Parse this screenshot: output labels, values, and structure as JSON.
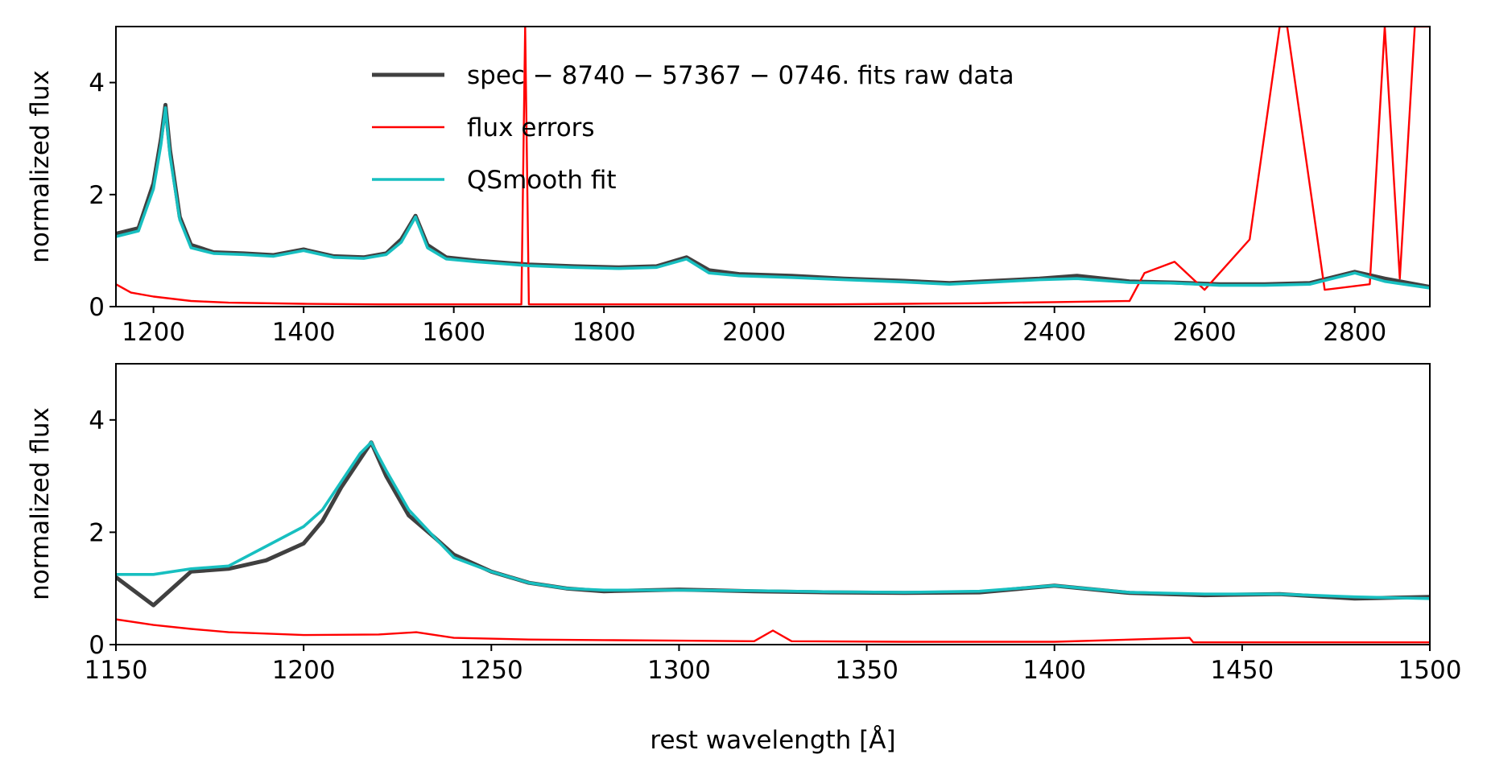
{
  "chart_data": [
    {
      "type": "line",
      "panel": "top",
      "xlabel": "",
      "ylabel": "normalized flux",
      "xlim": [
        1150,
        2900
      ],
      "ylim": [
        0,
        5
      ],
      "xticks": [
        1200,
        1400,
        1600,
        1800,
        2000,
        2200,
        2400,
        2600,
        2800
      ],
      "yticks": [
        0,
        2,
        4
      ],
      "legend": {
        "placement": "top-center",
        "entries": [
          {
            "label": "spec − 8740 − 57367 − 0746. fits raw data",
            "color": "#404040"
          },
          {
            "label": " flux errors",
            "color": "#ff0000"
          },
          {
            "label": "QSmooth fit",
            "color": "#17bfc0"
          }
        ]
      },
      "series": [
        {
          "name": "spec − 8740 − 57367 − 0746. fits raw data",
          "color": "#404040",
          "x": [
            1150,
            1180,
            1200,
            1210,
            1216,
            1222,
            1235,
            1250,
            1280,
            1320,
            1360,
            1400,
            1440,
            1480,
            1510,
            1530,
            1549,
            1565,
            1590,
            1630,
            1700,
            1760,
            1820,
            1870,
            1910,
            1940,
            1980,
            2050,
            2120,
            2200,
            2260,
            2320,
            2380,
            2430,
            2500,
            2560,
            2620,
            2680,
            2740,
            2800,
            2840,
            2900
          ],
          "y": [
            1.3,
            1.4,
            2.2,
            3.0,
            3.6,
            2.8,
            1.6,
            1.1,
            0.97,
            0.95,
            0.92,
            1.02,
            0.9,
            0.88,
            0.95,
            1.2,
            1.62,
            1.1,
            0.88,
            0.82,
            0.75,
            0.72,
            0.7,
            0.72,
            0.88,
            0.65,
            0.58,
            0.55,
            0.5,
            0.46,
            0.42,
            0.46,
            0.5,
            0.55,
            0.45,
            0.43,
            0.4,
            0.4,
            0.42,
            0.62,
            0.5,
            0.35
          ]
        },
        {
          "name": "flux errors",
          "color": "#ff0000",
          "x": [
            1150,
            1170,
            1200,
            1250,
            1300,
            1400,
            1500,
            1600,
            1690,
            1695,
            1700,
            1800,
            1900,
            2000,
            2100,
            2200,
            2300,
            2400,
            2500,
            2520,
            2560,
            2600,
            2660,
            2700,
            2710,
            2760,
            2820,
            2840,
            2860,
            2880,
            2900
          ],
          "y": [
            0.4,
            0.25,
            0.18,
            0.1,
            0.07,
            0.05,
            0.04,
            0.04,
            0.04,
            5.0,
            0.04,
            0.04,
            0.04,
            0.04,
            0.04,
            0.05,
            0.06,
            0.08,
            0.1,
            0.6,
            0.8,
            0.3,
            1.2,
            5.0,
            5.0,
            0.3,
            0.4,
            5.0,
            0.5,
            5.0,
            5.0
          ]
        },
        {
          "name": "QSmooth fit",
          "color": "#17bfc0",
          "x": [
            1150,
            1180,
            1200,
            1210,
            1216,
            1222,
            1235,
            1250,
            1280,
            1320,
            1360,
            1400,
            1440,
            1480,
            1510,
            1530,
            1549,
            1565,
            1590,
            1630,
            1700,
            1760,
            1820,
            1870,
            1910,
            1940,
            1980,
            2050,
            2120,
            2200,
            2260,
            2320,
            2380,
            2430,
            2500,
            2560,
            2620,
            2680,
            2740,
            2800,
            2840,
            2900
          ],
          "y": [
            1.25,
            1.35,
            2.1,
            2.9,
            3.55,
            2.7,
            1.55,
            1.05,
            0.95,
            0.93,
            0.9,
            1.0,
            0.88,
            0.86,
            0.93,
            1.15,
            1.6,
            1.05,
            0.85,
            0.8,
            0.73,
            0.7,
            0.68,
            0.7,
            0.85,
            0.6,
            0.55,
            0.52,
            0.48,
            0.44,
            0.4,
            0.44,
            0.48,
            0.5,
            0.43,
            0.42,
            0.38,
            0.38,
            0.4,
            0.6,
            0.45,
            0.33
          ]
        }
      ]
    },
    {
      "type": "line",
      "panel": "bottom",
      "xlabel": "rest wavelength [Å]",
      "ylabel": "normalized flux",
      "xlim": [
        1150,
        1500
      ],
      "ylim": [
        0,
        5
      ],
      "xticks": [
        1150,
        1200,
        1250,
        1300,
        1350,
        1400,
        1450,
        1500
      ],
      "yticks": [
        0,
        2,
        4
      ],
      "series": [
        {
          "name": "spec − 8740 − 57367 − 0746. fits raw data",
          "color": "#404040",
          "x": [
            1150,
            1160,
            1170,
            1180,
            1190,
            1200,
            1205,
            1210,
            1215,
            1218,
            1222,
            1228,
            1235,
            1240,
            1250,
            1260,
            1270,
            1280,
            1300,
            1320,
            1340,
            1360,
            1380,
            1400,
            1420,
            1440,
            1460,
            1480,
            1500
          ],
          "y": [
            1.2,
            0.7,
            1.3,
            1.35,
            1.5,
            1.8,
            2.2,
            2.8,
            3.3,
            3.6,
            3.0,
            2.3,
            1.9,
            1.6,
            1.3,
            1.1,
            1.0,
            0.95,
            0.98,
            0.95,
            0.93,
            0.92,
            0.93,
            1.05,
            0.92,
            0.88,
            0.9,
            0.82,
            0.85
          ]
        },
        {
          "name": "flux errors",
          "color": "#ff0000",
          "x": [
            1150,
            1160,
            1170,
            1180,
            1200,
            1220,
            1230,
            1240,
            1260,
            1280,
            1300,
            1320,
            1325,
            1330,
            1360,
            1400,
            1436,
            1437,
            1450,
            1500
          ],
          "y": [
            0.45,
            0.35,
            0.28,
            0.22,
            0.17,
            0.18,
            0.22,
            0.12,
            0.09,
            0.08,
            0.07,
            0.06,
            0.25,
            0.06,
            0.05,
            0.05,
            0.12,
            0.04,
            0.04,
            0.04
          ]
        },
        {
          "name": "QSmooth fit",
          "color": "#17bfc0",
          "x": [
            1150,
            1160,
            1170,
            1180,
            1190,
            1200,
            1205,
            1210,
            1215,
            1218,
            1222,
            1228,
            1235,
            1240,
            1250,
            1260,
            1270,
            1280,
            1300,
            1320,
            1340,
            1360,
            1380,
            1400,
            1420,
            1440,
            1460,
            1480,
            1500
          ],
          "y": [
            1.25,
            1.25,
            1.35,
            1.4,
            1.75,
            2.1,
            2.4,
            2.9,
            3.4,
            3.6,
            3.1,
            2.4,
            1.9,
            1.55,
            1.3,
            1.1,
            1.0,
            0.97,
            0.97,
            0.96,
            0.94,
            0.93,
            0.95,
            1.05,
            0.93,
            0.9,
            0.9,
            0.85,
            0.82
          ]
        }
      ]
    }
  ]
}
